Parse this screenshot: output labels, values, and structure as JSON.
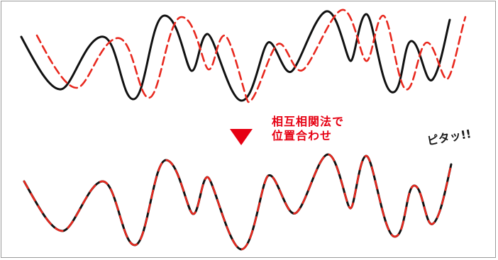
{
  "caption": {
    "line1": "相互相関法で",
    "line2": "位置合わせ"
  },
  "exclaim": "ピタッ!!",
  "colors": {
    "reference": "#111111",
    "shifted": "#e8281e",
    "arrow": "#e60012",
    "caption": "#e60012"
  }
}
